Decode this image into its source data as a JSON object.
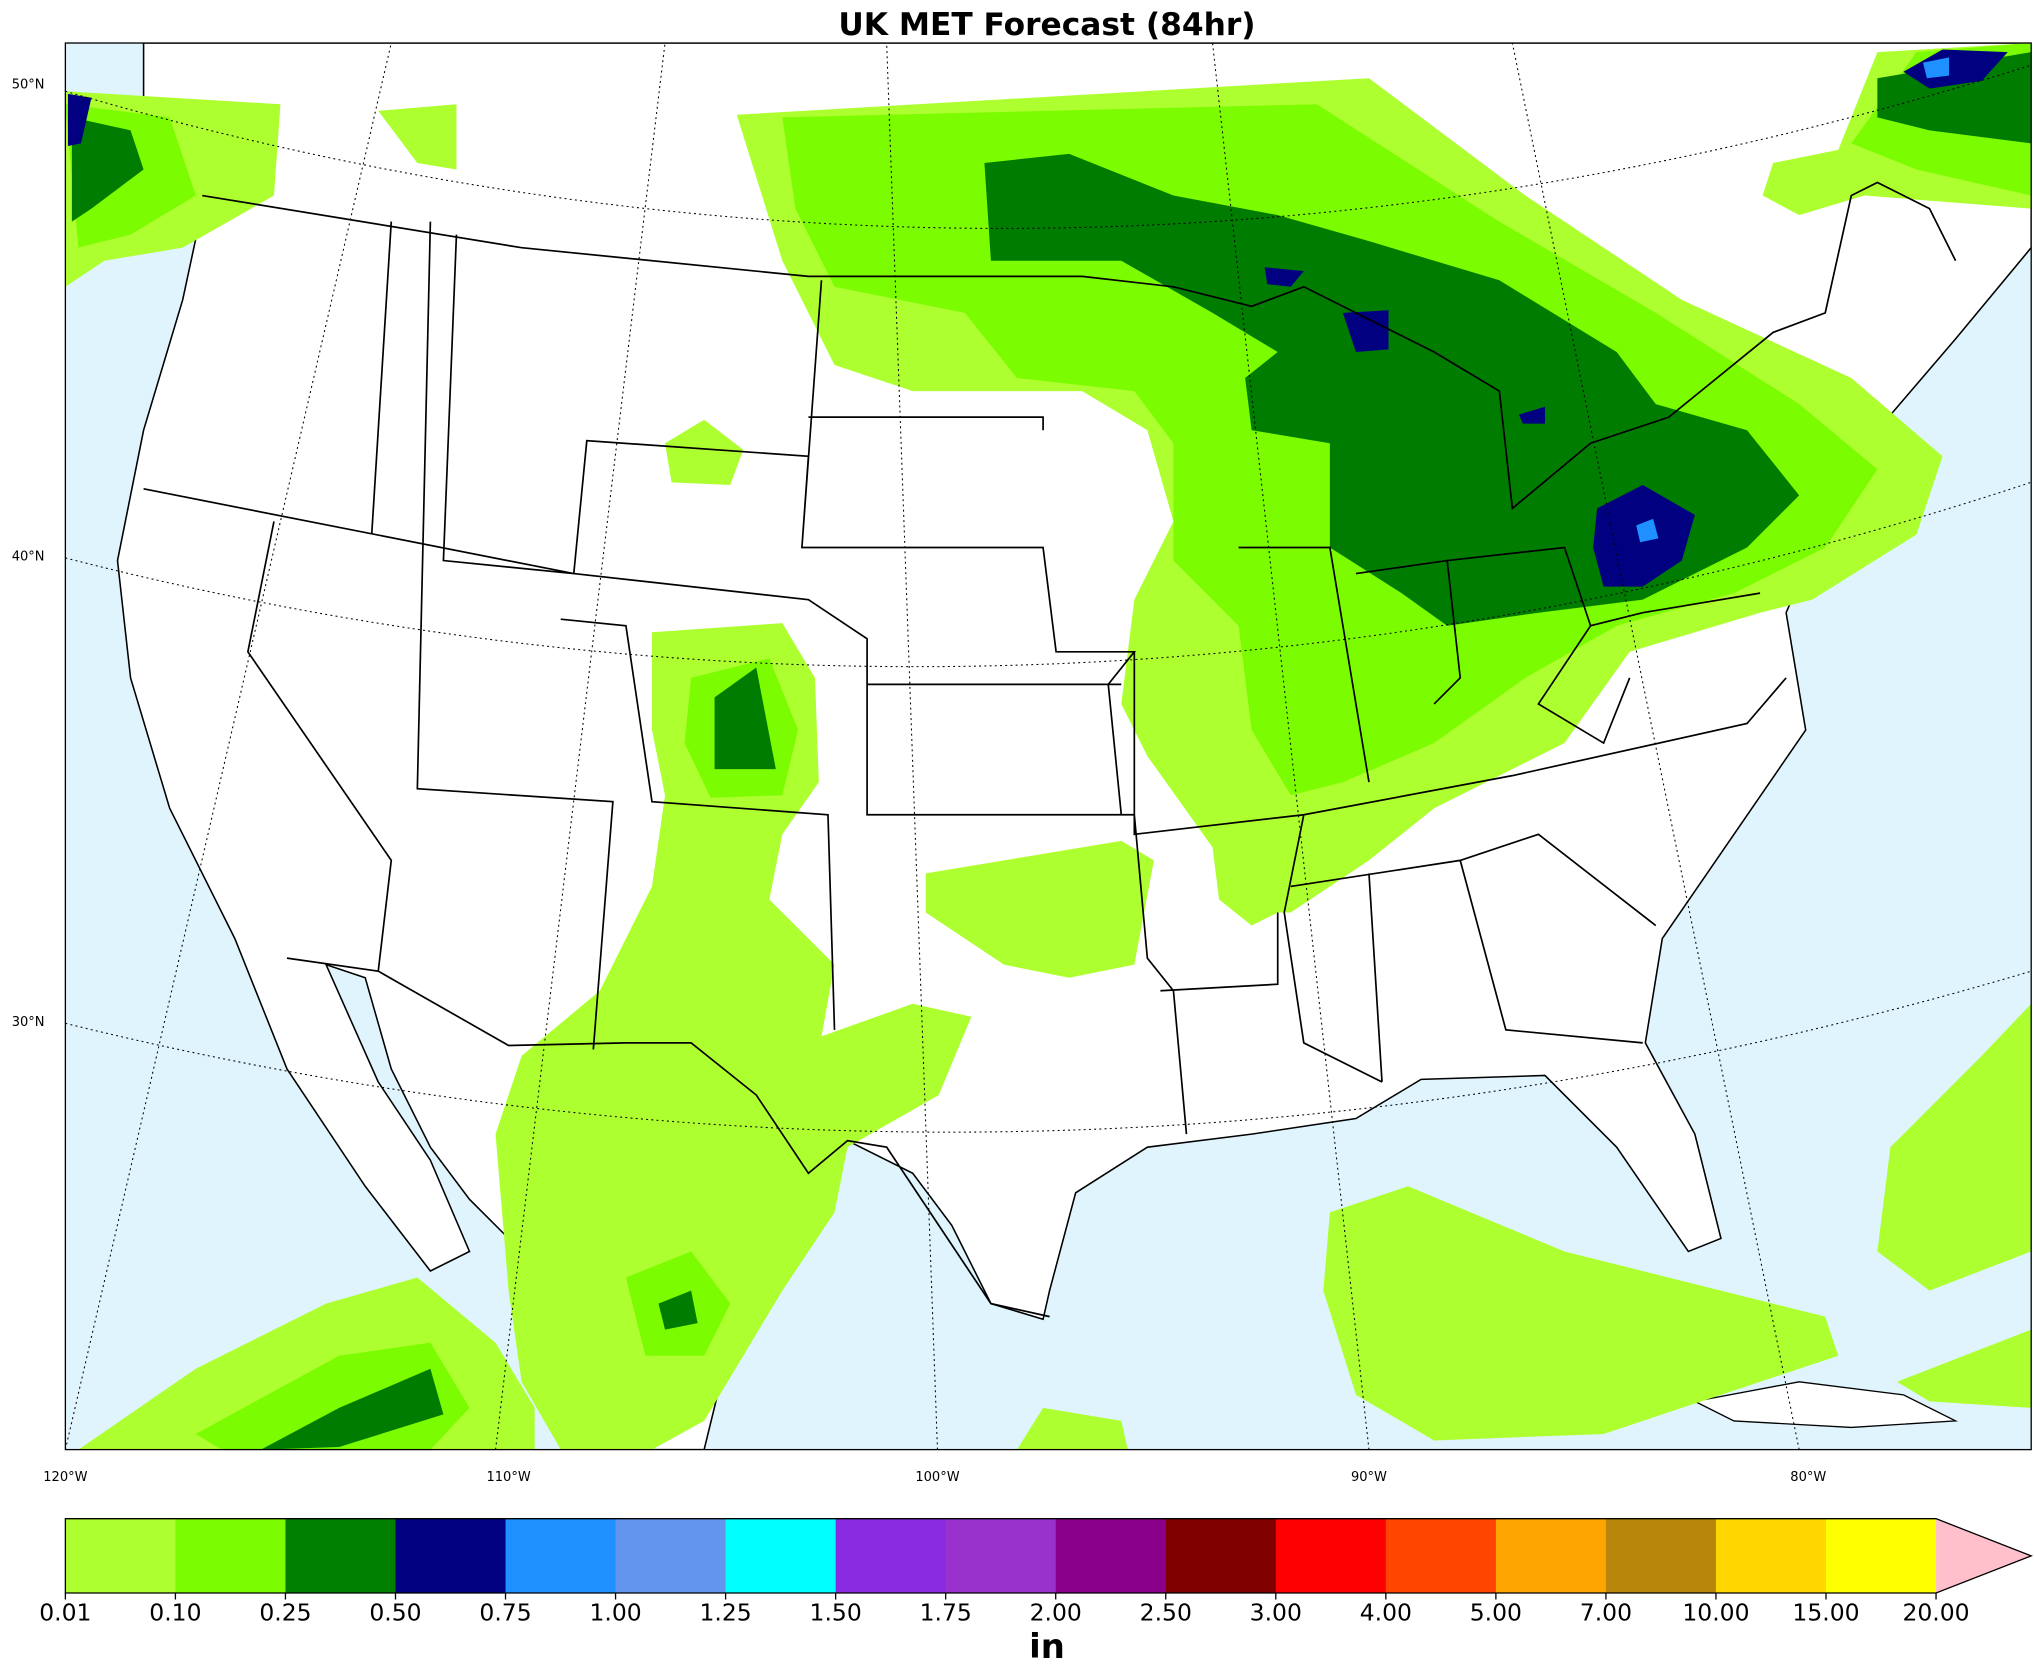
{
  "header": {
    "title": "UK MET Forecast (84hr)"
  },
  "map": {
    "lat_labels": [
      "50°N",
      "40°N",
      "30°N"
    ],
    "lon_labels": [
      "120°W",
      "110°W",
      "100°W",
      "90°W",
      "80°W"
    ]
  },
  "colorbar": {
    "colors": [
      "#adff2f",
      "#7cfc00",
      "#008000",
      "#000080",
      "#1e90ff",
      "#6495ed",
      "#00ffff",
      "#8a2be2",
      "#9932cc",
      "#8b008b",
      "#800000",
      "#ff0000",
      "#ff4500",
      "#ffa500",
      "#b8860b",
      "#ffd700",
      "#ffff00"
    ],
    "extend_color": "#ffc0cb",
    "ticks": [
      "0.01",
      "0.10",
      "0.25",
      "0.50",
      "0.75",
      "1.00",
      "1.25",
      "1.50",
      "1.75",
      "2.00",
      "2.50",
      "3.00",
      "4.00",
      "5.00",
      "7.00",
      "10.00",
      "15.00",
      "20.00"
    ],
    "unit": "in"
  }
}
